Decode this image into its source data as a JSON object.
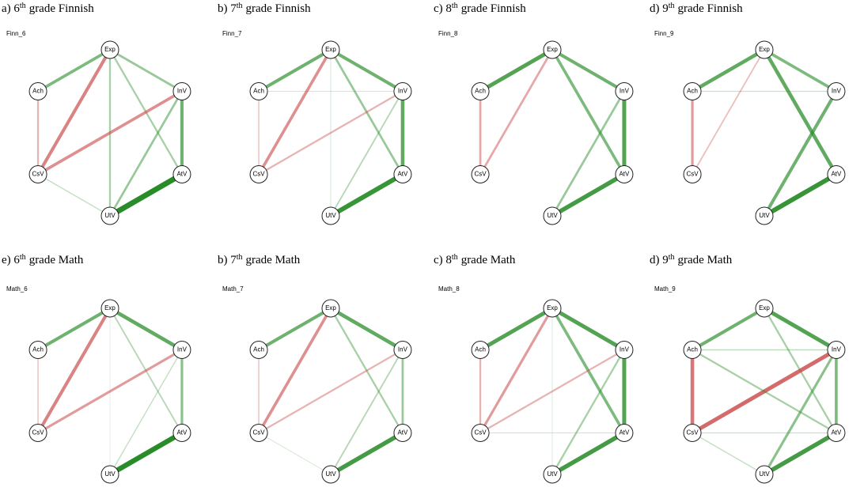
{
  "panels": [
    {
      "title": {
        "prefix": "a) 6",
        "sup": "th",
        "rest": "grade Finnish"
      },
      "label": "Finn_6",
      "nodes": [
        "Exp",
        "InV",
        "AtV",
        "UtV",
        "CsV",
        "Ach"
      ],
      "edges": [
        {
          "from": "Exp",
          "to": "Ach",
          "weight": 0.35
        },
        {
          "from": "Exp",
          "to": "InV",
          "weight": 0.25
        },
        {
          "from": "Exp",
          "to": "CsV",
          "weight": -0.4
        },
        {
          "from": "Exp",
          "to": "UtV",
          "weight": 0.2
        },
        {
          "from": "Exp",
          "to": "AtV",
          "weight": 0.2
        },
        {
          "from": "Ach",
          "to": "CsV",
          "weight": -0.2
        },
        {
          "from": "CsV",
          "to": "InV",
          "weight": -0.35
        },
        {
          "from": "CsV",
          "to": "UtV",
          "weight": 0.1
        },
        {
          "from": "InV",
          "to": "AtV",
          "weight": 0.4
        },
        {
          "from": "InV",
          "to": "UtV",
          "weight": 0.25
        },
        {
          "from": "AtV",
          "to": "UtV",
          "weight": 0.7
        }
      ]
    },
    {
      "title": {
        "prefix": "b) 7",
        "sup": "th",
        "rest": "grade Finnish"
      },
      "label": "Finn_7",
      "nodes": [
        "Exp",
        "InV",
        "AtV",
        "UtV",
        "CsV",
        "Ach"
      ],
      "edges": [
        {
          "from": "Exp",
          "to": "Ach",
          "weight": 0.4
        },
        {
          "from": "Exp",
          "to": "InV",
          "weight": 0.4
        },
        {
          "from": "Exp",
          "to": "CsV",
          "weight": -0.35
        },
        {
          "from": "Exp",
          "to": "AtV",
          "weight": 0.25
        },
        {
          "from": "Exp",
          "to": "UtV",
          "weight": 0.05
        },
        {
          "from": "Ach",
          "to": "CsV",
          "weight": -0.12
        },
        {
          "from": "Ach",
          "to": "InV",
          "weight": 0.05
        },
        {
          "from": "CsV",
          "to": "InV",
          "weight": -0.2
        },
        {
          "from": "InV",
          "to": "AtV",
          "weight": 0.45
        },
        {
          "from": "InV",
          "to": "UtV",
          "weight": 0.15
        },
        {
          "from": "AtV",
          "to": "UtV",
          "weight": 0.6
        }
      ]
    },
    {
      "title": {
        "prefix": "c) 8",
        "sup": "th",
        "rest": "grade Finnish"
      },
      "label": "Finn_8",
      "nodes": [
        "Exp",
        "InV",
        "AtV",
        "UtV",
        "CsV",
        "Ach"
      ],
      "edges": [
        {
          "from": "Exp",
          "to": "Ach",
          "weight": 0.5
        },
        {
          "from": "Exp",
          "to": "InV",
          "weight": 0.4
        },
        {
          "from": "Exp",
          "to": "CsV",
          "weight": -0.25
        },
        {
          "from": "Exp",
          "to": "AtV",
          "weight": 0.35
        },
        {
          "from": "Ach",
          "to": "CsV",
          "weight": -0.25
        },
        {
          "from": "InV",
          "to": "AtV",
          "weight": 0.5
        },
        {
          "from": "InV",
          "to": "UtV",
          "weight": 0.25
        },
        {
          "from": "AtV",
          "to": "UtV",
          "weight": 0.55
        }
      ]
    },
    {
      "title": {
        "prefix": "d) 9",
        "sup": "th",
        "rest": "grade Finnish"
      },
      "label": "Finn_9",
      "nodes": [
        "Exp",
        "InV",
        "AtV",
        "UtV",
        "CsV",
        "Ach"
      ],
      "edges": [
        {
          "from": "Exp",
          "to": "Ach",
          "weight": 0.45
        },
        {
          "from": "Exp",
          "to": "InV",
          "weight": 0.35
        },
        {
          "from": "Exp",
          "to": "CsV",
          "weight": -0.15
        },
        {
          "from": "Exp",
          "to": "AtV",
          "weight": 0.45
        },
        {
          "from": "Ach",
          "to": "CsV",
          "weight": -0.3
        },
        {
          "from": "Ach",
          "to": "InV",
          "weight": 0.08
        },
        {
          "from": "InV",
          "to": "UtV",
          "weight": 0.4
        },
        {
          "from": "AtV",
          "to": "UtV",
          "weight": 0.6
        }
      ]
    },
    {
      "title": {
        "prefix": "e) 6",
        "sup": "th",
        "rest": "grade Math"
      },
      "label": "Math_6",
      "nodes": [
        "Exp",
        "InV",
        "AtV",
        "UtV",
        "CsV",
        "Ach"
      ],
      "edges": [
        {
          "from": "Exp",
          "to": "Ach",
          "weight": 0.4
        },
        {
          "from": "Exp",
          "to": "InV",
          "weight": 0.45
        },
        {
          "from": "Exp",
          "to": "CsV",
          "weight": -0.4
        },
        {
          "from": "Exp",
          "to": "AtV",
          "weight": 0.15
        },
        {
          "from": "Exp",
          "to": "UtV",
          "weight": 0.03
        },
        {
          "from": "Ach",
          "to": "CsV",
          "weight": -0.12
        },
        {
          "from": "CsV",
          "to": "InV",
          "weight": -0.3
        },
        {
          "from": "InV",
          "to": "AtV",
          "weight": 0.3
        },
        {
          "from": "InV",
          "to": "UtV",
          "weight": 0.1
        },
        {
          "from": "AtV",
          "to": "UtV",
          "weight": 0.65
        }
      ]
    },
    {
      "title": {
        "prefix": "b) 7",
        "sup": "th",
        "rest": "grade Math"
      },
      "label": "Math_7",
      "nodes": [
        "Exp",
        "InV",
        "AtV",
        "UtV",
        "CsV",
        "Ach"
      ],
      "edges": [
        {
          "from": "Exp",
          "to": "Ach",
          "weight": 0.4
        },
        {
          "from": "Exp",
          "to": "InV",
          "weight": 0.45
        },
        {
          "from": "Exp",
          "to": "CsV",
          "weight": -0.35
        },
        {
          "from": "Exp",
          "to": "AtV",
          "weight": 0.2
        },
        {
          "from": "Ach",
          "to": "CsV",
          "weight": -0.12
        },
        {
          "from": "CsV",
          "to": "InV",
          "weight": -0.2
        },
        {
          "from": "CsV",
          "to": "UtV",
          "weight": 0.05
        },
        {
          "from": "InV",
          "to": "AtV",
          "weight": 0.25
        },
        {
          "from": "InV",
          "to": "UtV",
          "weight": 0.15
        },
        {
          "from": "AtV",
          "to": "UtV",
          "weight": 0.55
        }
      ]
    },
    {
      "title": {
        "prefix": "c) 8",
        "sup": "th",
        "rest": "grade Math"
      },
      "label": "Math_8",
      "nodes": [
        "Exp",
        "InV",
        "AtV",
        "UtV",
        "CsV",
        "Ach"
      ],
      "edges": [
        {
          "from": "Exp",
          "to": "Ach",
          "weight": 0.5
        },
        {
          "from": "Exp",
          "to": "InV",
          "weight": 0.5
        },
        {
          "from": "Exp",
          "to": "CsV",
          "weight": -0.3
        },
        {
          "from": "Exp",
          "to": "AtV",
          "weight": 0.35
        },
        {
          "from": "Exp",
          "to": "UtV",
          "weight": 0.04
        },
        {
          "from": "Ach",
          "to": "CsV",
          "weight": -0.2
        },
        {
          "from": "CsV",
          "to": "InV",
          "weight": -0.2
        },
        {
          "from": "CsV",
          "to": "AtV",
          "weight": 0.06
        },
        {
          "from": "InV",
          "to": "AtV",
          "weight": 0.5
        },
        {
          "from": "InV",
          "to": "UtV",
          "weight": 0.2
        },
        {
          "from": "AtV",
          "to": "UtV",
          "weight": 0.55
        }
      ]
    },
    {
      "title": {
        "prefix": "d) 9",
        "sup": "th",
        "rest": "grade Math"
      },
      "label": "Math_9",
      "nodes": [
        "Exp",
        "InV",
        "AtV",
        "UtV",
        "CsV",
        "Ach"
      ],
      "edges": [
        {
          "from": "Exp",
          "to": "Ach",
          "weight": 0.4
        },
        {
          "from": "Exp",
          "to": "InV",
          "weight": 0.5
        },
        {
          "from": "Exp",
          "to": "AtV",
          "weight": 0.2
        },
        {
          "from": "Ach",
          "to": "CsV",
          "weight": -0.45
        },
        {
          "from": "CsV",
          "to": "InV",
          "weight": -0.5
        },
        {
          "from": "Ach",
          "to": "InV",
          "weight": 0.12
        },
        {
          "from": "Ach",
          "to": "AtV",
          "weight": 0.2
        },
        {
          "from": "CsV",
          "to": "UtV",
          "weight": 0.1
        },
        {
          "from": "CsV",
          "to": "AtV",
          "weight": 0.08
        },
        {
          "from": "InV",
          "to": "AtV",
          "weight": 0.35
        },
        {
          "from": "InV",
          "to": "UtV",
          "weight": 0.3
        },
        {
          "from": "AtV",
          "to": "UtV",
          "weight": 0.55
        }
      ]
    }
  ]
}
